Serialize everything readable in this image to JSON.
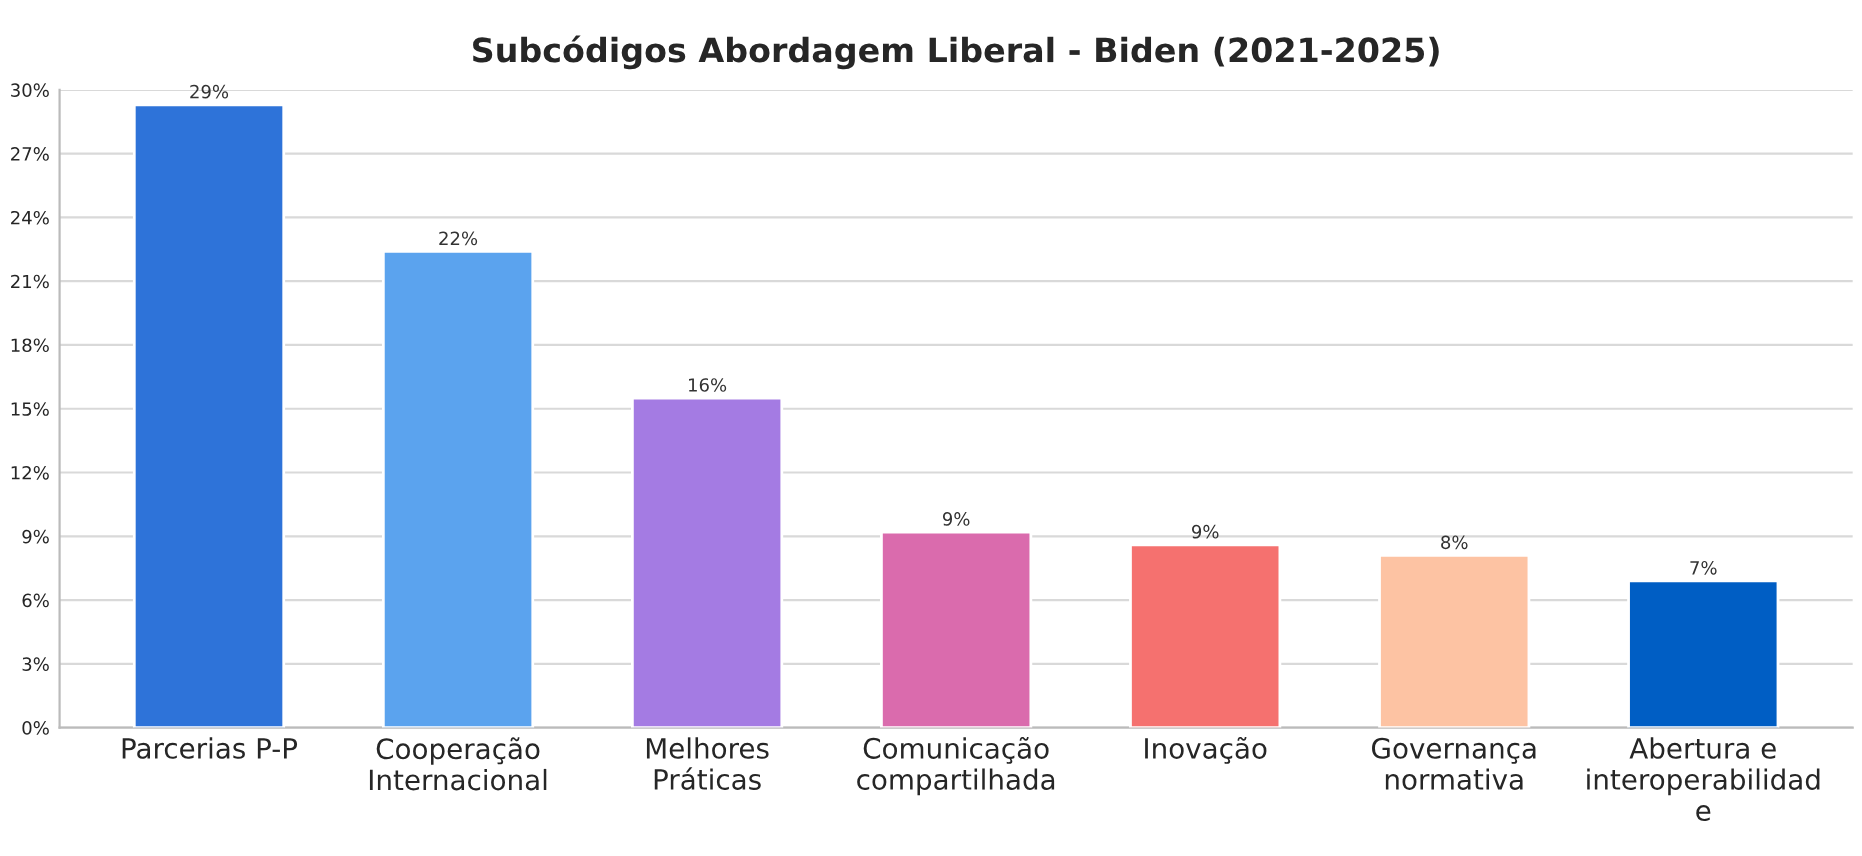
{
  "chart_data": {
    "type": "bar",
    "title": "Subcódigos Abordagem Liberal - Biden (2021-2025)",
    "categories": [
      "Parcerias P-P",
      "Cooperação\nInternacional",
      "Melhores\nPráticas",
      "Comunicação\ncompartilhada",
      "Inovação",
      "Governança\nnormativa",
      "Abertura e\ninteroperabilidad\ne"
    ],
    "values": [
      29.3,
      22.4,
      15.5,
      9.2,
      8.6,
      8.1,
      6.9
    ],
    "value_labels": [
      "29%",
      "22%",
      "16%",
      "9%",
      "9%",
      "8%",
      "7%"
    ],
    "colors": [
      "#2e73d9",
      "#5ba3ee",
      "#a47be3",
      "#da6bad",
      "#f5716f",
      "#fdc3a3",
      "#005ec4"
    ],
    "ylim": [
      0,
      30
    ],
    "yticks": [
      {
        "value": 0,
        "label": "0%"
      },
      {
        "value": 3,
        "label": "3%"
      },
      {
        "value": 6,
        "label": "6%"
      },
      {
        "value": 9,
        "label": "9%"
      },
      {
        "value": 12,
        "label": "12%"
      },
      {
        "value": 15,
        "label": "15%"
      },
      {
        "value": 18,
        "label": "18%"
      },
      {
        "value": 21,
        "label": "21%"
      },
      {
        "value": 24,
        "label": "24%"
      },
      {
        "value": 27,
        "label": "27%"
      },
      {
        "value": 30,
        "label": "30%"
      }
    ],
    "grid": "y"
  }
}
